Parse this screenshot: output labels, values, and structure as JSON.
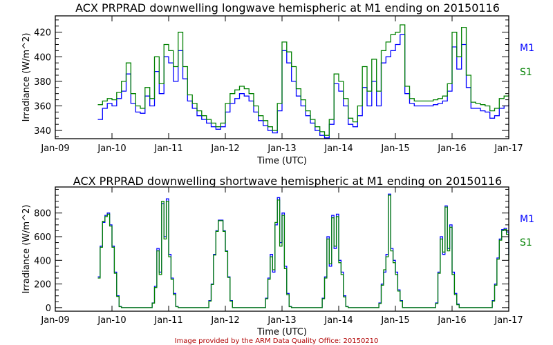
{
  "footer": {
    "credit": "Image provided by the ARM Data Quality Office: 20150210"
  },
  "colors": {
    "M1": "#0000ff",
    "S1": "#008000",
    "credit": "#b00000"
  },
  "chart_data": [
    {
      "type": "line",
      "title": "ACX PRPRAD downwelling longwave hemispheric at M1 ending on 20150116",
      "xlabel": "Time (UTC)",
      "ylabel": "Irradiance (W/m^2)",
      "x_unit": "days since Jan-09 00:00 UTC",
      "x_start": 0.75,
      "x_step": 0.083333,
      "xlim": [
        0,
        8
      ],
      "ylim": [
        333.3,
        433.3
      ],
      "xticks": [
        "Jan-09",
        "Jan-10",
        "Jan-11",
        "Jan-12",
        "Jan-13",
        "Jan-14",
        "Jan-15",
        "Jan-16",
        "Jan-17"
      ],
      "yticks": [
        340,
        360,
        380,
        400,
        420
      ],
      "yminor_step": 5,
      "legend_position": "right",
      "series": [
        {
          "name": "M1",
          "color": "#0000ff",
          "values": [
            349,
            358,
            362,
            360,
            366,
            372,
            386,
            362,
            355,
            354,
            368,
            360,
            388,
            370,
            400,
            395,
            380,
            405,
            382,
            364,
            358,
            352,
            349,
            346,
            343,
            341,
            343,
            355,
            362,
            366,
            370,
            368,
            364,
            355,
            348,
            344,
            340,
            338,
            356,
            405,
            395,
            380,
            368,
            360,
            352,
            346,
            340,
            336,
            334,
            345,
            378,
            372,
            360,
            345,
            343,
            352,
            375,
            360,
            380,
            360,
            395,
            400,
            405,
            410,
            418,
            370,
            362,
            360,
            360,
            360,
            360,
            361,
            362,
            364,
            372,
            408,
            390,
            410,
            375,
            358,
            358,
            356,
            355,
            350,
            352,
            358,
            360,
            361
          ]
        },
        {
          "name": "S1",
          "color": "#008000",
          "values": [
            361,
            364,
            366,
            365,
            371,
            380,
            395,
            370,
            360,
            358,
            375,
            366,
            400,
            378,
            410,
            405,
            392,
            420,
            392,
            369,
            362,
            356,
            352,
            349,
            346,
            343,
            346,
            362,
            370,
            373,
            376,
            374,
            370,
            360,
            352,
            348,
            343,
            340,
            362,
            412,
            404,
            392,
            374,
            365,
            356,
            349,
            343,
            339,
            336,
            349,
            386,
            380,
            366,
            350,
            347,
            360,
            392,
            372,
            398,
            372,
            405,
            412,
            418,
            420,
            426,
            376,
            366,
            364,
            364,
            364,
            364,
            365,
            366,
            368,
            378,
            420,
            400,
            424,
            385,
            363,
            362,
            361,
            360,
            356,
            358,
            366,
            368,
            369
          ]
        }
      ]
    },
    {
      "type": "line",
      "title": "ACX PRPRAD downwelling shortwave hemispheric at M1 ending on 20150116",
      "xlabel": "Time (UTC)",
      "ylabel": "Irradiance (W/m^2)",
      "x_unit": "days since Jan-09 00:00 UTC",
      "x_start": 0.75,
      "x_step": 0.041667,
      "xlim": [
        0,
        8
      ],
      "ylim": [
        -30,
        1020
      ],
      "xticks": [
        "Jan-09",
        "Jan-10",
        "Jan-11",
        "Jan-12",
        "Jan-13",
        "Jan-14",
        "Jan-15",
        "Jan-16",
        "Jan-17"
      ],
      "yticks": [
        0,
        200,
        400,
        600,
        800
      ],
      "yminor_step": 50,
      "legend_position": "right",
      "series": [
        {
          "name": "M1",
          "color": "#0000ff",
          "values": [
            260,
            520,
            720,
            780,
            800,
            700,
            520,
            300,
            100,
            10,
            0,
            0,
            0,
            0,
            0,
            0,
            0,
            0,
            0,
            0,
            0,
            0,
            0,
            40,
            180,
            500,
            300,
            880,
            600,
            920,
            450,
            250,
            120,
            10,
            0,
            0,
            0,
            0,
            0,
            0,
            0,
            0,
            0,
            0,
            0,
            0,
            0,
            60,
            200,
            450,
            650,
            740,
            740,
            650,
            480,
            260,
            60,
            0,
            0,
            0,
            0,
            0,
            0,
            0,
            0,
            0,
            0,
            0,
            0,
            0,
            0,
            80,
            250,
            450,
            300,
            700,
            930,
            550,
            800,
            350,
            120,
            10,
            0,
            0,
            0,
            0,
            0,
            0,
            0,
            0,
            0,
            0,
            0,
            0,
            0,
            80,
            260,
            600,
            350,
            780,
            500,
            790,
            400,
            300,
            100,
            10,
            0,
            0,
            0,
            0,
            0,
            0,
            0,
            0,
            0,
            0,
            0,
            0,
            0,
            40,
            200,
            300,
            450,
            960,
            500,
            400,
            300,
            150,
            60,
            0,
            0,
            0,
            0,
            0,
            0,
            0,
            0,
            0,
            0,
            0,
            0,
            0,
            0,
            40,
            300,
            600,
            450,
            860,
            500,
            700,
            300,
            120,
            30,
            0,
            0,
            0,
            0,
            0,
            0,
            0,
            0,
            0,
            0,
            0,
            0,
            0,
            0,
            60,
            200,
            420,
            580,
            660,
            670,
            640,
            450
          ]
        },
        {
          "name": "S1",
          "color": "#008000",
          "values": [
            250,
            510,
            730,
            770,
            790,
            690,
            510,
            290,
            95,
            8,
            0,
            0,
            0,
            0,
            0,
            0,
            0,
            0,
            0,
            0,
            0,
            0,
            0,
            38,
            170,
            480,
            280,
            900,
            580,
            900,
            430,
            240,
            110,
            8,
            0,
            0,
            0,
            0,
            0,
            0,
            0,
            0,
            0,
            0,
            0,
            0,
            0,
            55,
            195,
            445,
            645,
            735,
            735,
            645,
            475,
            255,
            55,
            0,
            0,
            0,
            0,
            0,
            0,
            0,
            0,
            0,
            0,
            0,
            0,
            0,
            0,
            75,
            240,
            430,
            320,
            720,
            910,
            520,
            780,
            330,
            110,
            8,
            0,
            0,
            0,
            0,
            0,
            0,
            0,
            0,
            0,
            0,
            0,
            0,
            0,
            75,
            250,
            580,
            370,
            760,
            520,
            770,
            380,
            280,
            90,
            8,
            0,
            0,
            0,
            0,
            0,
            0,
            0,
            0,
            0,
            0,
            0,
            0,
            0,
            35,
            190,
            320,
            430,
            950,
            480,
            380,
            280,
            140,
            55,
            0,
            0,
            0,
            0,
            0,
            0,
            0,
            0,
            0,
            0,
            0,
            0,
            0,
            0,
            35,
            290,
            580,
            470,
            850,
            480,
            680,
            280,
            110,
            25,
            0,
            0,
            0,
            0,
            0,
            0,
            0,
            0,
            0,
            0,
            0,
            0,
            0,
            0,
            55,
            190,
            410,
            570,
            650,
            660,
            620,
            400
          ]
        }
      ]
    }
  ]
}
